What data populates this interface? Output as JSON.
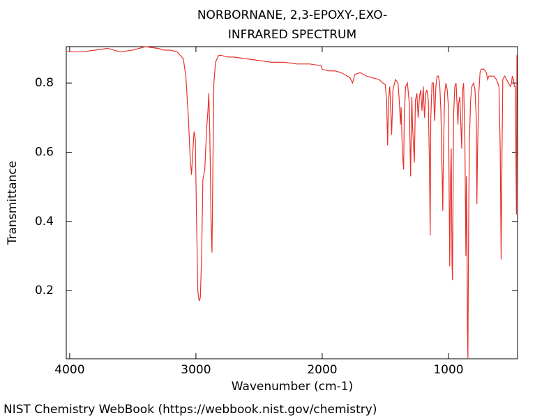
{
  "chart_data": {
    "type": "line",
    "title": "NORBORNANE, 2,3-EPOXY-,EXO-",
    "subtitle": "INFRARED SPECTRUM",
    "x_label": "Wavenumber (cm-1)",
    "y_label": "Transmittance",
    "source": "NIST Chemistry WebBook (https://webbook.nist.gov/chemistry)",
    "xlim": [
      4027,
      453
    ],
    "ylim": [
      0.003,
      0.905
    ],
    "xticks": [
      4000,
      3000,
      2000,
      1000
    ],
    "yticks": [
      0.2,
      0.4,
      0.6,
      0.8
    ],
    "x": [
      4027,
      3900,
      3800,
      3700,
      3600,
      3500,
      3400,
      3300,
      3250,
      3200,
      3150,
      3100,
      3080,
      3060,
      3045,
      3035,
      3025,
      3015,
      3005,
      2995,
      2985,
      2975,
      2965,
      2955,
      2945,
      2930,
      2915,
      2905,
      2898,
      2890,
      2880,
      2873,
      2866,
      2858,
      2845,
      2820,
      2800,
      2750,
      2700,
      2600,
      2500,
      2400,
      2300,
      2200,
      2100,
      2010,
      2000,
      1950,
      1900,
      1850,
      1800,
      1780,
      1760,
      1740,
      1700,
      1650,
      1600,
      1550,
      1520,
      1500,
      1490,
      1482,
      1475,
      1465,
      1455,
      1450,
      1440,
      1420,
      1400,
      1390,
      1380,
      1375,
      1365,
      1355,
      1350,
      1340,
      1325,
      1310,
      1300,
      1295,
      1290,
      1285,
      1270,
      1262,
      1250,
      1240,
      1230,
      1220,
      1210,
      1200,
      1190,
      1180,
      1170,
      1160,
      1150,
      1145,
      1140,
      1130,
      1120,
      1110,
      1100,
      1090,
      1080,
      1070,
      1060,
      1050,
      1045,
      1040,
      1030,
      1020,
      1010,
      1000,
      990,
      985,
      978,
      972,
      968,
      960,
      950,
      940,
      930,
      925,
      920,
      910,
      905,
      895,
      888,
      880,
      870,
      862,
      858,
      854,
      850,
      846,
      842,
      835,
      825,
      815,
      800,
      790,
      780,
      775,
      770,
      760,
      750,
      740,
      720,
      700,
      690,
      680,
      660,
      640,
      620,
      600,
      590,
      583,
      576,
      570,
      555,
      540,
      525,
      510,
      500,
      495,
      485,
      478,
      470,
      462,
      458,
      453
    ],
    "series": [
      {
        "name": "Transmittance",
        "color": "#e8302a",
        "values": [
          0.89,
          0.89,
          0.895,
          0.9,
          0.89,
          0.895,
          0.905,
          0.9,
          0.895,
          0.895,
          0.89,
          0.87,
          0.82,
          0.7,
          0.58,
          0.535,
          0.6,
          0.66,
          0.64,
          0.4,
          0.2,
          0.17,
          0.18,
          0.3,
          0.52,
          0.55,
          0.67,
          0.72,
          0.77,
          0.65,
          0.4,
          0.31,
          0.55,
          0.8,
          0.86,
          0.88,
          0.88,
          0.875,
          0.875,
          0.87,
          0.865,
          0.86,
          0.86,
          0.855,
          0.855,
          0.85,
          0.84,
          0.835,
          0.835,
          0.83,
          0.82,
          0.815,
          0.8,
          0.825,
          0.83,
          0.82,
          0.815,
          0.81,
          0.8,
          0.795,
          0.75,
          0.62,
          0.75,
          0.79,
          0.7,
          0.65,
          0.78,
          0.81,
          0.8,
          0.75,
          0.68,
          0.73,
          0.6,
          0.55,
          0.7,
          0.79,
          0.8,
          0.74,
          0.53,
          0.65,
          0.76,
          0.68,
          0.57,
          0.75,
          0.77,
          0.7,
          0.76,
          0.78,
          0.72,
          0.79,
          0.7,
          0.77,
          0.78,
          0.75,
          0.55,
          0.36,
          0.7,
          0.8,
          0.8,
          0.69,
          0.79,
          0.82,
          0.82,
          0.8,
          0.72,
          0.53,
          0.43,
          0.6,
          0.77,
          0.8,
          0.78,
          0.73,
          0.27,
          0.5,
          0.61,
          0.28,
          0.23,
          0.7,
          0.79,
          0.8,
          0.72,
          0.68,
          0.74,
          0.76,
          0.71,
          0.61,
          0.78,
          0.8,
          0.63,
          0.3,
          0.53,
          0.4,
          0.1,
          0.005,
          0.3,
          0.62,
          0.75,
          0.79,
          0.8,
          0.78,
          0.7,
          0.45,
          0.6,
          0.77,
          0.83,
          0.84,
          0.84,
          0.83,
          0.81,
          0.82,
          0.82,
          0.82,
          0.81,
          0.79,
          0.6,
          0.29,
          0.6,
          0.81,
          0.82,
          0.81,
          0.8,
          0.79,
          0.8,
          0.82,
          0.81,
          0.79,
          0.79,
          0.42,
          0.88,
          0.88
        ]
      }
    ]
  }
}
